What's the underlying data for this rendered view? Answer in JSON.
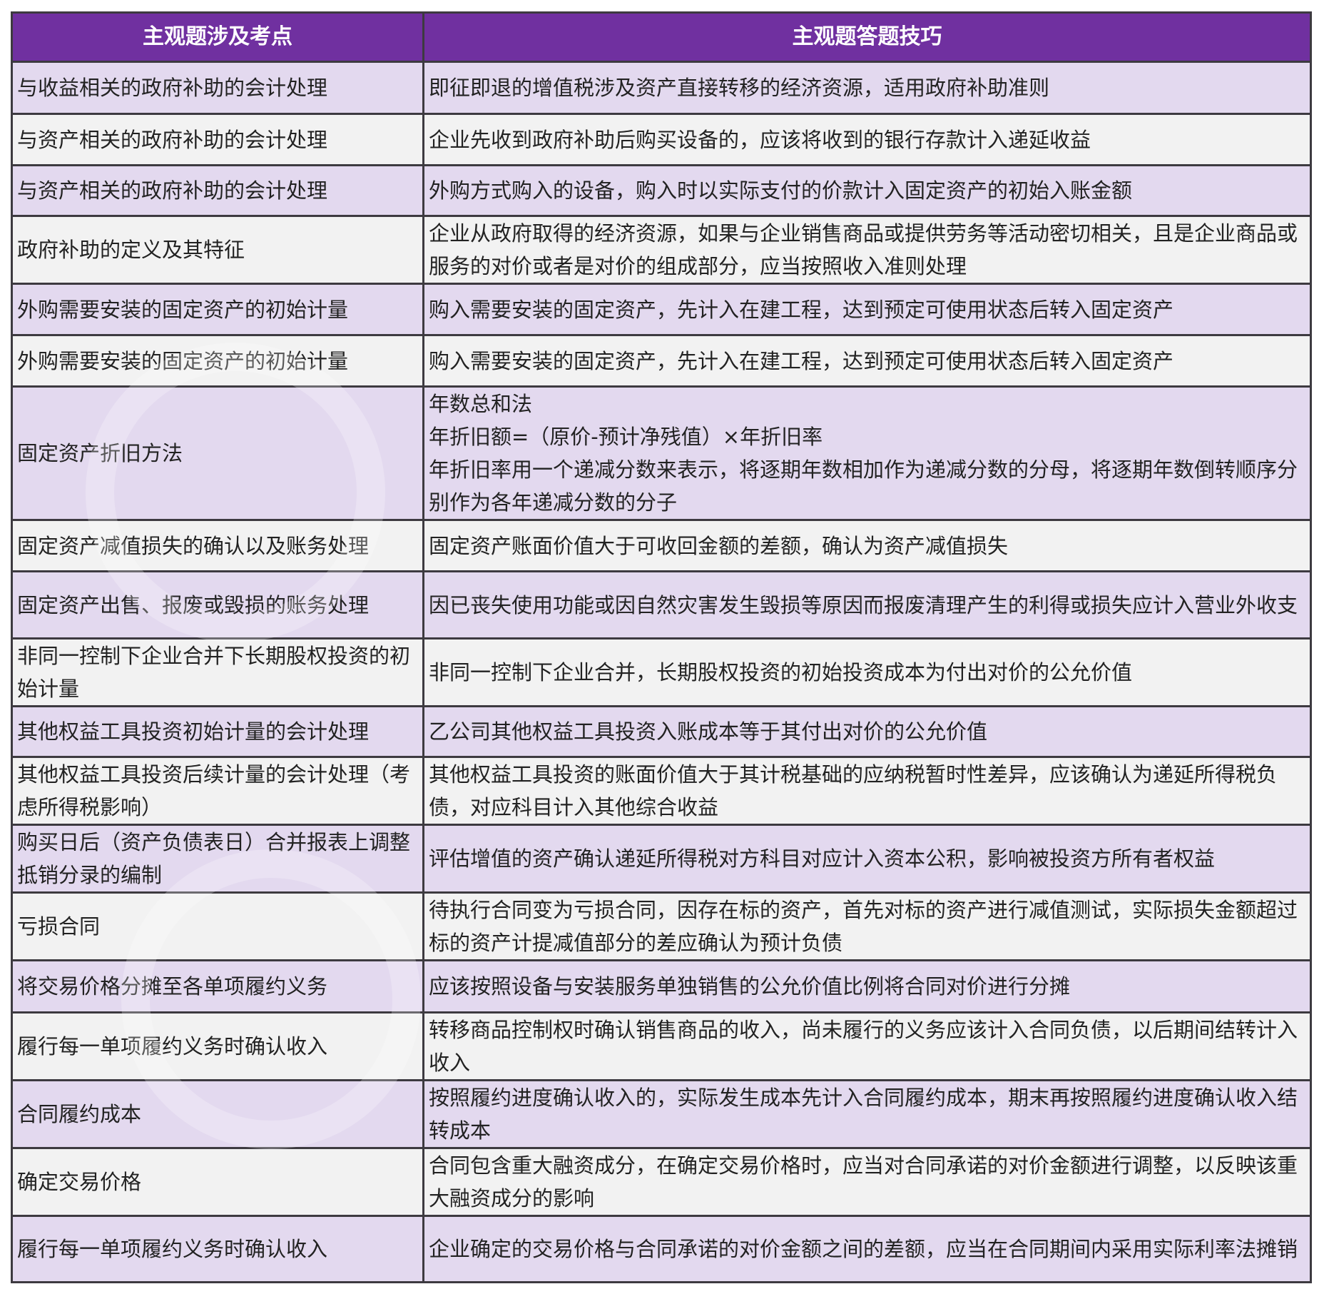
{
  "header": {
    "col1": "主观题涉及考点",
    "col2": "主观题答题技巧"
  },
  "colors": {
    "header_bg": "#7030a0",
    "row_odd": "#e3d9ef",
    "row_even": "#f2f2f2",
    "border": "#3d3a40"
  },
  "rows": [
    {
      "topic": "与收益相关的政府补助的会计处理",
      "tip": [
        "即征即退的增值税涉及资产直接转移的经济资源，适用政府补助准则"
      ]
    },
    {
      "topic": "与资产相关的政府补助的会计处理",
      "tip": [
        "企业先收到政府补助后购买设备的，应该将收到的银行存款计入递延收益"
      ]
    },
    {
      "topic": "与资产相关的政府补助的会计处理",
      "tip": [
        "外购方式购入的设备，购入时以实际支付的价款计入固定资产的初始入账金额"
      ]
    },
    {
      "topic": "政府补助的定义及其特征",
      "tip": [
        "企业从政府取得的经济资源，如果与企业销售商品或提供劳务等活动密切相关，且是企业商品或服务的对价或者是对价的组成部分，应当按照收入准则处理"
      ]
    },
    {
      "topic": "外购需要安装的固定资产的初始计量",
      "tip": [
        "购入需要安装的固定资产，先计入在建工程，达到预定可使用状态后转入固定资产"
      ]
    },
    {
      "topic": "外购需要安装的固定资产的初始计量",
      "tip": [
        "购入需要安装的固定资产，先计入在建工程，达到预定可使用状态后转入固定资产"
      ]
    },
    {
      "topic": "固定资产折旧方法",
      "tip": [
        "年数总和法",
        "年折旧额=（原价-预计净残值）×年折旧率",
        "年折旧率用一个递减分数来表示，将逐期年数相加作为递减分数的分母，将逐期年数倒转顺序分别作为各年递减分数的分子"
      ]
    },
    {
      "topic": "固定资产减值损失的确认以及账务处理",
      "tip": [
        "固定资产账面价值大于可收回金额的差额，确认为资产减值损失"
      ]
    },
    {
      "topic": "固定资产出售、报废或毁损的账务处理",
      "tip": [
        "因已丧失使用功能或因自然灾害发生毁损等原因而报废清理产生的利得或损失应计入营业外收支"
      ]
    },
    {
      "topic": "非同一控制下企业合并下长期股权投资的初始计量",
      "tip": [
        "非同一控制下企业合并，长期股权投资的初始投资成本为付出对价的公允价值"
      ]
    },
    {
      "topic": "其他权益工具投资初始计量的会计处理",
      "tip": [
        "乙公司其他权益工具投资入账成本等于其付出对价的公允价值"
      ]
    },
    {
      "topic": "其他权益工具投资后续计量的会计处理（考虑所得税影响）",
      "tip": [
        "其他权益工具投资的账面价值大于其计税基础的应纳税暂时性差异，应该确认为递延所得税负债，对应科目计入其他综合收益"
      ]
    },
    {
      "topic": "购买日后（资产负债表日）合并报表上调整抵销分录的编制",
      "tip": [
        "评估增值的资产确认递延所得税对方科目对应计入资本公积，影响被投资方所有者权益"
      ]
    },
    {
      "topic": "亏损合同",
      "tip": [
        "待执行合同变为亏损合同，因存在标的资产，首先对标的资产进行减值测试，实际损失金额超过标的资产计提减值部分的差应确认为预计负债"
      ]
    },
    {
      "topic": "将交易价格分摊至各单项履约义务",
      "tip": [
        "应该按照设备与安装服务单独销售的公允价值比例将合同对价进行分摊"
      ]
    },
    {
      "topic": "履行每一单项履约义务时确认收入",
      "tip": [
        "转移商品控制权时确认销售商品的收入，尚未履行的义务应该计入合同负债，以后期间结转计入收入"
      ]
    },
    {
      "topic": "合同履约成本",
      "tip": [
        "按照履约进度确认收入的，实际发生成本先计入合同履约成本，期末再按照履约进度确认收入结转成本"
      ]
    },
    {
      "topic": "确定交易价格",
      "tip": [
        "合同包含重大融资成分，在确定交易价格时，应当对合同承诺的对价金额进行调整，以反映该重大融资成分的影响"
      ]
    },
    {
      "topic": "履行每一单项履约义务时确认收入",
      "tip": [
        "企业确定的交易价格与合同承诺的对价金额之间的差额，应当在合同期间内采用实际利率法摊销"
      ]
    }
  ]
}
